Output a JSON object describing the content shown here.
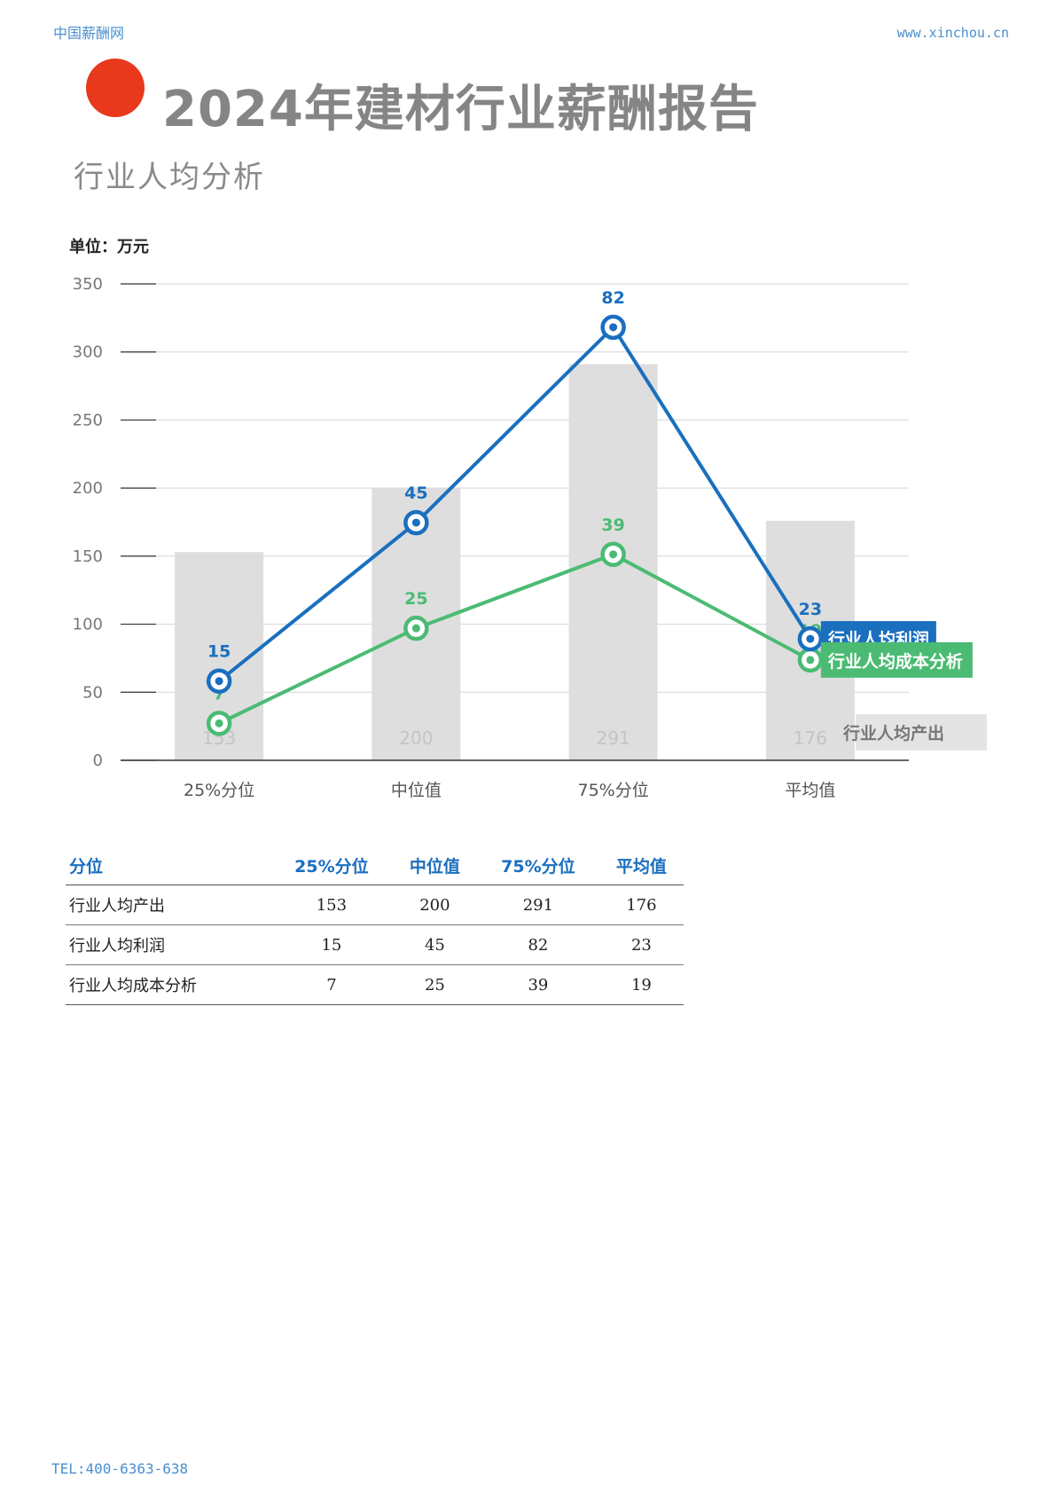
{
  "header": {
    "left": "中国薪酬网",
    "right": "www.xinchou.cn"
  },
  "title": "2024年建材行业薪酬报告",
  "subtitle": "行业人均分析",
  "unit": "单位：万元",
  "colors": {
    "accent_dot": "#e8391d",
    "profit": "#1a6fbf",
    "cost": "#4bbb73",
    "output_bar": "#dedede"
  },
  "chart_data": {
    "type": "bar",
    "categories": [
      "25%分位",
      "中位值",
      "75%分位",
      "平均值"
    ],
    "ylim": [
      0,
      350
    ],
    "yticks": [
      0,
      50,
      100,
      150,
      200,
      250,
      300,
      350
    ],
    "grid": true,
    "series": [
      {
        "name": "行业人均产出",
        "type": "bar",
        "values": [
          153,
          200,
          291,
          176
        ]
      },
      {
        "name": "行业人均利润",
        "type": "line",
        "values": [
          15,
          45,
          82,
          23
        ]
      },
      {
        "name": "行业人均成本分析",
        "type": "line",
        "values": [
          7,
          25,
          39,
          19
        ]
      }
    ]
  },
  "table": {
    "headers": [
      "分位",
      "25%分位",
      "中位值",
      "75%分位",
      "平均值"
    ],
    "rows": [
      [
        "行业人均产出",
        "153",
        "200",
        "291",
        "176"
      ],
      [
        "行业人均利润",
        "15",
        "45",
        "82",
        "23"
      ],
      [
        "行业人均成本分析",
        "7",
        "25",
        "39",
        "19"
      ]
    ]
  },
  "footer": "TEL:400-6363-638"
}
